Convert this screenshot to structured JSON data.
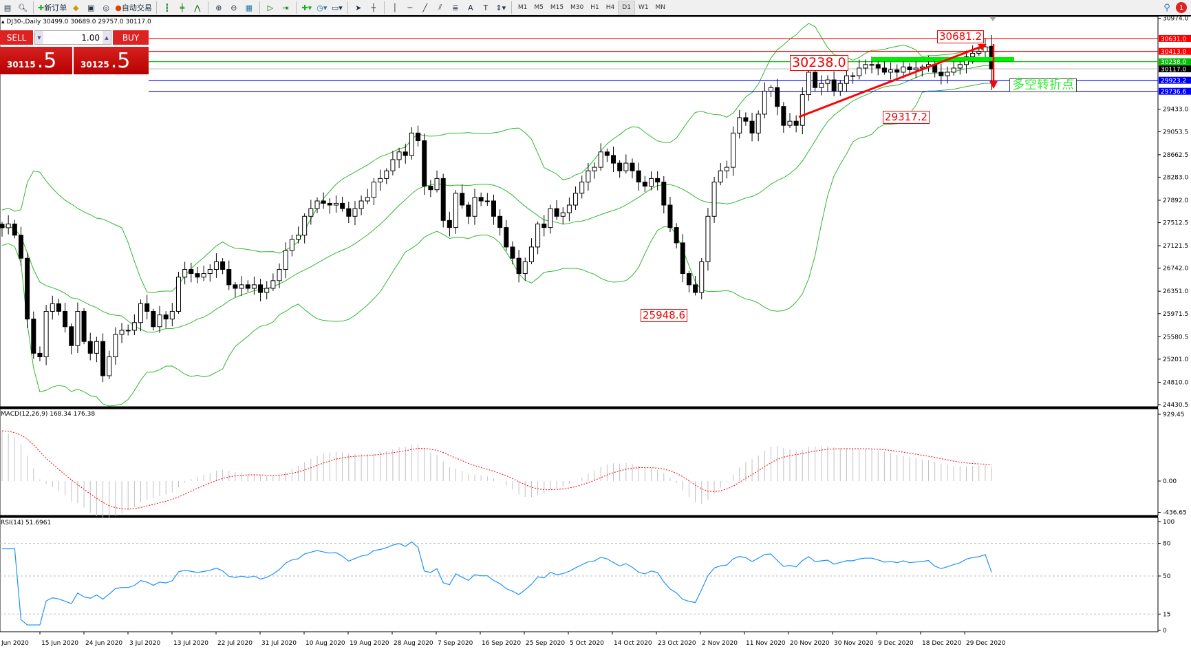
{
  "toolbar": {
    "new_order": "新订单",
    "auto_trading": "自动交易",
    "timeframes": [
      "M1",
      "M5",
      "M15",
      "M30",
      "H1",
      "H4",
      "D1",
      "W1",
      "MN"
    ],
    "active_timeframe": "D1",
    "notification_count": "1"
  },
  "chart_info": {
    "symbol": "DJ30-,Daily",
    "open": "30499.0",
    "high": "30689.0",
    "low": "29757.0",
    "close": "30117.0"
  },
  "trade_panel": {
    "sell_label": "SELL",
    "buy_label": "BUY",
    "volume": "1.00",
    "sell_price_main": "30115",
    "sell_price_frac": ".5",
    "buy_price_main": "30125",
    "buy_price_frac": ".5"
  },
  "price_axis": {
    "max": 30974.0,
    "min": 24430.5,
    "ticks": [
      "30974.0",
      "29433.0",
      "29053.5",
      "28662.5",
      "28283.0",
      "27892.0",
      "27512.5",
      "27121.5",
      "26742.0",
      "26351.0",
      "25971.5",
      "25580.5",
      "25201.0",
      "24810.0",
      "24430.5"
    ]
  },
  "horizontal_lines": [
    {
      "price": "30631.0",
      "color": "#ff0000"
    },
    {
      "price": "30413.0",
      "color": "#ff0000"
    },
    {
      "price": "30238.0",
      "color": "#00c000"
    },
    {
      "price": "30117.0",
      "color": "#c0c0c0",
      "label_bg": "#000000"
    },
    {
      "price": "29923.2",
      "color": "#0000ff"
    },
    {
      "price": "29736.6",
      "color": "#0000ff"
    }
  ],
  "annotations": {
    "level_30238": "30238.0",
    "high_30681": "30681.2",
    "low_29317": "29317.2",
    "low_25948": "25948.6",
    "turning_point": "多空转折点"
  },
  "colors": {
    "bollinger": "#2eb82e",
    "macd_hist": "#c0c0c0",
    "macd_signal": "#ff0000",
    "rsi": "#1e90ff",
    "trend_arrow": "#ff0000",
    "zone_bar": "#00ee00"
  },
  "macd": {
    "label": "MACD(12,26,9) 168.34 176.38",
    "ticks": [
      "929.45",
      "0.00",
      "-436.65"
    ]
  },
  "rsi": {
    "label": "RSI(14) 51.6961",
    "ticks": [
      "100",
      "80",
      "50",
      "15",
      "0"
    ]
  },
  "date_axis": [
    "Jun 2020",
    "15 Jun 2020",
    "24 Jun 2020",
    "3 Jul 2020",
    "13 Jul 2020",
    "22 Jul 2020",
    "31 Jul 2020",
    "10 Aug 2020",
    "19 Aug 2020",
    "28 Aug 2020",
    "7 Sep 2020",
    "16 Sep 2020",
    "25 Sep 2020",
    "5 Oct 2020",
    "14 Oct 2020",
    "23 Oct 2020",
    "2 Nov 2020",
    "11 Nov 2020",
    "20 Nov 2020",
    "30 Nov 2020",
    "9 Dec 2020",
    "18 Dec 2020",
    "29 Dec 2020"
  ],
  "chart_data": {
    "type": "candlestick",
    "closes": [
      27426,
      27490,
      27300,
      26910,
      25880,
      25300,
      25240,
      26010,
      26140,
      26010,
      25750,
      25430,
      26010,
      25500,
      25300,
      25500,
      24920,
      25240,
      25620,
      25690,
      25690,
      25820,
      26140,
      26010,
      25750,
      25950,
      25880,
      26010,
      26590,
      26720,
      26650,
      26590,
      26650,
      26720,
      26850,
      26720,
      26460,
      26400,
      26460,
      26400,
      26460,
      26330,
      26400,
      26530,
      26720,
      27040,
      27230,
      27300,
      27620,
      27750,
      27880,
      27840,
      27810,
      27840,
      27750,
      27620,
      27750,
      27880,
      27940,
      28200,
      28260,
      28390,
      28580,
      28710,
      28650,
      29030,
      28900,
      28130,
      28070,
      28260,
      27550,
      27430,
      28010,
      27810,
      27620,
      27940,
      27880,
      27880,
      27620,
      27430,
      27100,
      26910,
      26650,
      26850,
      27100,
      27490,
      27430,
      27750,
      27620,
      27680,
      27810,
      28010,
      28200,
      28390,
      28450,
      28710,
      28650,
      28520,
      28390,
      28520,
      28390,
      28200,
      28130,
      28260,
      28200,
      27810,
      27430,
      27170,
      26650,
      26460,
      26330,
      26850,
      27620,
      28200,
      28390,
      28450,
      29030,
      29290,
      29230,
      29030,
      29350,
      29740,
      29800,
      29480,
      29160,
      29230,
      29160,
      29680,
      30060,
      29800,
      29870,
      29930,
      29740,
      29870,
      30000,
      30000,
      30130,
      30190,
      30190,
      30130,
      30060,
      30100,
      30060,
      30150,
      30100,
      30130,
      30150,
      30190,
      30060,
      30000,
      30060,
      30130,
      30190,
      30320,
      30380,
      30410,
      30490,
      30117
    ],
    "last_bar": {
      "open": 30499.0,
      "high": 30689.0,
      "low": 29757.0,
      "close": 30117.0
    },
    "indicators": [
      "Bollinger Bands(20,2)",
      "MACD(12,26,9)",
      "RSI(14)"
    ]
  }
}
